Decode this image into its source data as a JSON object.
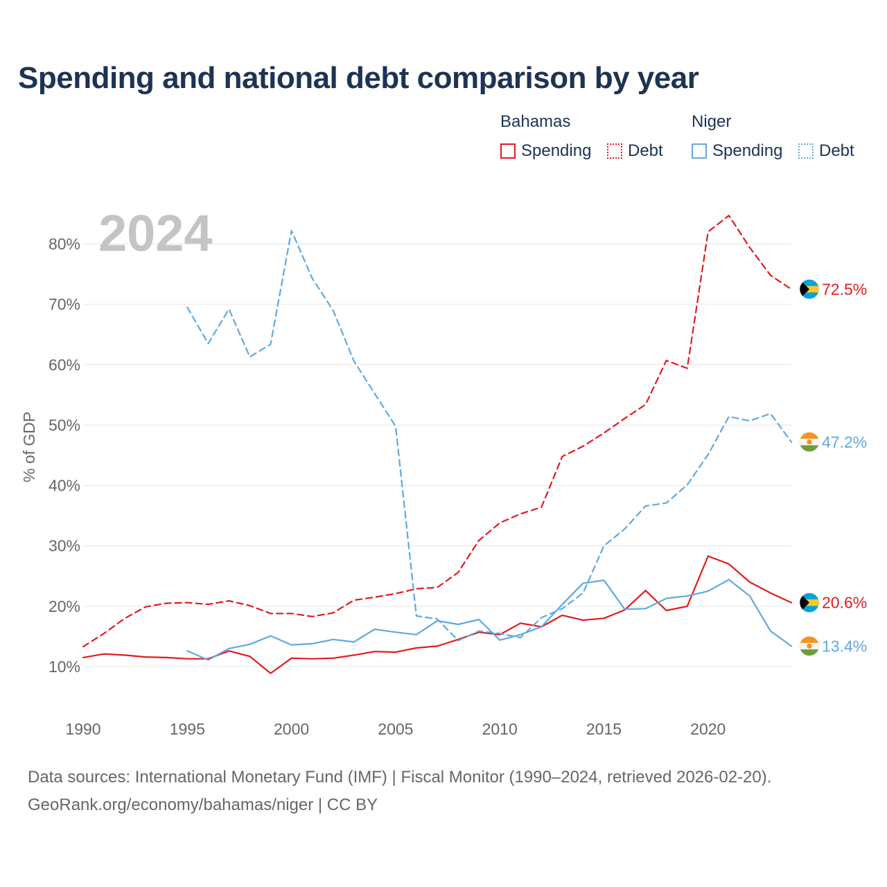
{
  "title": "Spending and national debt comparison by year",
  "legend": {
    "groups": [
      {
        "name": "Bahamas",
        "color": "#e31a1c",
        "items": [
          {
            "label": "Spending",
            "style": "solid"
          },
          {
            "label": "Debt",
            "style": "dotted"
          }
        ]
      },
      {
        "name": "Niger",
        "color": "#5fa8e3",
        "items": [
          {
            "label": "Spending",
            "style": "solid"
          },
          {
            "label": "Debt",
            "style": "dotted"
          }
        ]
      }
    ]
  },
  "year_watermark": "2024",
  "footer": {
    "line1": "Data sources: International Monetary Fund (IMF) | Fiscal Monitor (1990–2024, retrieved 2026-02-20).",
    "line2": "GeoRank.org/economy/bahamas/niger | CC BY"
  },
  "chart_data": {
    "type": "line",
    "ylabel": "% of GDP",
    "xlabel": "",
    "xlim": [
      1990,
      2024
    ],
    "ylim": [
      5,
      85
    ],
    "x_ticks": [
      1990,
      1995,
      2000,
      2005,
      2010,
      2015,
      2020
    ],
    "y_ticks": [
      10,
      20,
      30,
      40,
      50,
      60,
      70,
      80
    ],
    "y_tick_labels": [
      "10%",
      "20%",
      "30%",
      "40%",
      "50%",
      "60%",
      "70%",
      "80%"
    ],
    "grid": true,
    "series": [
      {
        "name": "Bahamas Debt",
        "country": "Bahamas",
        "metric": "Debt",
        "color": "#e31a1c",
        "dash": true,
        "start_year": 1990,
        "values": [
          13.3,
          15.5,
          18.0,
          19.9,
          20.5,
          20.6,
          20.3,
          20.9,
          20.1,
          18.8,
          18.8,
          18.3,
          18.9,
          21.0,
          21.5,
          22.1,
          22.9,
          23.1,
          25.6,
          30.9,
          33.8,
          35.3,
          36.4,
          44.8,
          46.5,
          48.7,
          51.1,
          53.4,
          60.7,
          59.4,
          82.0,
          84.7,
          79.4,
          74.8,
          72.5
        ],
        "end_label": "72.5%"
      },
      {
        "name": "Bahamas Spending",
        "country": "Bahamas",
        "metric": "Spending",
        "color": "#e31a1c",
        "dash": false,
        "start_year": 1990,
        "values": [
          11.5,
          12.1,
          11.9,
          11.6,
          11.5,
          11.3,
          11.3,
          12.6,
          11.7,
          8.9,
          11.4,
          11.3,
          11.4,
          11.9,
          12.5,
          12.4,
          13.1,
          13.4,
          14.5,
          15.7,
          15.3,
          17.2,
          16.6,
          18.5,
          17.7,
          18.0,
          19.4,
          22.6,
          19.3,
          20.0,
          28.3,
          27.0,
          24.0,
          22.2,
          20.6
        ],
        "end_label": "20.6%"
      },
      {
        "name": "Niger Debt",
        "country": "Niger",
        "metric": "Debt",
        "color": "#5fa8e3",
        "dash": true,
        "start_year": 1995,
        "values": [
          69.5,
          63.5,
          69.2,
          61.3,
          63.4,
          82.2,
          74.3,
          69.0,
          60.6,
          55.2,
          49.8,
          18.4,
          17.9,
          14.3,
          15.9,
          15.5,
          14.8,
          18.1,
          19.6,
          22.2,
          30.0,
          32.8,
          36.6,
          37.1,
          40.1,
          45.1,
          51.4,
          50.7,
          51.9,
          47.2
        ],
        "end_label": "47.2%"
      },
      {
        "name": "Niger Spending",
        "country": "Niger",
        "metric": "Spending",
        "color": "#5fa8e3",
        "dash": false,
        "start_year": 1995,
        "values": [
          12.6,
          11.1,
          13.0,
          13.7,
          15.1,
          13.6,
          13.8,
          14.5,
          14.1,
          16.2,
          15.7,
          15.3,
          17.6,
          17.0,
          17.8,
          14.4,
          15.3,
          16.6,
          20.3,
          23.8,
          24.3,
          19.5,
          19.6,
          21.3,
          21.7,
          22.5,
          24.4,
          21.7,
          15.9,
          13.4
        ],
        "end_label": "13.4%"
      }
    ]
  }
}
